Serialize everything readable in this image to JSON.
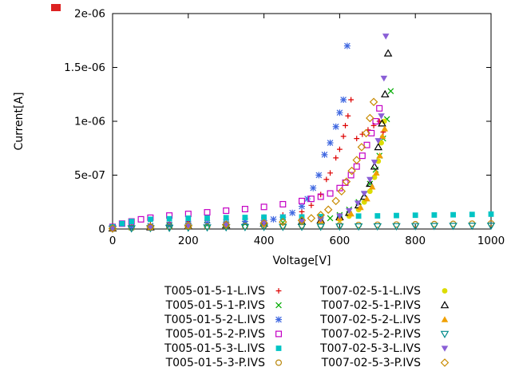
{
  "corner_marker": {
    "color": "#dd2222"
  },
  "chart_data": {
    "type": "scatter",
    "title": "",
    "xlabel": "Voltage[V]",
    "ylabel": "Current[A]",
    "xlim": [
      0,
      1000
    ],
    "ylim": [
      0,
      2e-06
    ],
    "xticks": [
      0,
      200,
      400,
      600,
      800,
      1000
    ],
    "xtick_labels": [
      "0",
      "200",
      "400",
      "600",
      "800",
      "1000"
    ],
    "yticks": [
      0,
      5e-07,
      1e-06,
      1.5e-06,
      2e-06
    ],
    "ytick_labels": [
      "0",
      "5e-07",
      "1e-06",
      "1.5e-06",
      "2e-06"
    ],
    "grid": false,
    "legend_position": "below-two-columns",
    "series": [
      {
        "name": "T005-01-5-1-L.IVS",
        "marker": "plus",
        "color": "#dd0000",
        "points": [
          [
            0,
            1e-08
          ],
          [
            50,
            3e-08
          ],
          [
            100,
            4.5e-08
          ],
          [
            150,
            6e-08
          ],
          [
            200,
            7e-08
          ],
          [
            250,
            8e-08
          ],
          [
            300,
            9e-08
          ],
          [
            350,
            1e-07
          ],
          [
            400,
            1.1e-07
          ],
          [
            450,
            1.3e-07
          ],
          [
            500,
            1.6e-07
          ],
          [
            525,
            2.2e-07
          ],
          [
            550,
            3.2e-07
          ],
          [
            565,
            4.6e-07
          ],
          [
            575,
            5.2e-07
          ],
          [
            590,
            6.6e-07
          ],
          [
            600,
            7.4e-07
          ],
          [
            610,
            8.6e-07
          ],
          [
            615,
            9.6e-07
          ],
          [
            622,
            1.05e-06
          ],
          [
            630,
            1.2e-06
          ],
          [
            645,
            8.4e-07
          ],
          [
            660,
            8.8e-07
          ],
          [
            675,
            9.2e-07
          ],
          [
            690,
            9.6e-07
          ],
          [
            705,
            1e-06
          ],
          [
            715,
            9e-07
          ]
        ]
      },
      {
        "name": "T005-01-5-1-P.IVS",
        "marker": "cross",
        "color": "#00aa00",
        "points": [
          [
            0,
            5e-09
          ],
          [
            50,
            1.5e-08
          ],
          [
            100,
            2.5e-08
          ],
          [
            150,
            3e-08
          ],
          [
            200,
            3.5e-08
          ],
          [
            250,
            4e-08
          ],
          [
            300,
            4.5e-08
          ],
          [
            350,
            5e-08
          ],
          [
            400,
            5.5e-08
          ],
          [
            450,
            6e-08
          ],
          [
            500,
            7e-08
          ],
          [
            550,
            8e-08
          ],
          [
            575,
            1e-07
          ],
          [
            600,
            1.3e-07
          ],
          [
            625,
            1.8e-07
          ],
          [
            650,
            2.5e-07
          ],
          [
            665,
            3.2e-07
          ],
          [
            680,
            4.2e-07
          ],
          [
            695,
            5.5e-07
          ],
          [
            705,
            6.8e-07
          ],
          [
            715,
            8.4e-07
          ],
          [
            725,
            1.02e-06
          ],
          [
            735,
            1.28e-06
          ]
        ]
      },
      {
        "name": "T005-01-5-2-L.IVS",
        "marker": "star",
        "color": "#4169e1",
        "points": [
          [
            0,
            8e-09
          ],
          [
            50,
            2e-08
          ],
          [
            100,
            3e-08
          ],
          [
            150,
            4e-08
          ],
          [
            200,
            5e-08
          ],
          [
            250,
            5.5e-08
          ],
          [
            300,
            6e-08
          ],
          [
            350,
            7e-08
          ],
          [
            400,
            8e-08
          ],
          [
            425,
            9e-08
          ],
          [
            450,
            1.1e-07
          ],
          [
            475,
            1.5e-07
          ],
          [
            500,
            2.1e-07
          ],
          [
            515,
            2.8e-07
          ],
          [
            530,
            3.8e-07
          ],
          [
            545,
            5e-07
          ],
          [
            560,
            6.9e-07
          ],
          [
            575,
            8e-07
          ],
          [
            590,
            9.5e-07
          ],
          [
            600,
            1.08e-06
          ],
          [
            610,
            1.2e-06
          ],
          [
            620,
            1.7e-06
          ]
        ]
      },
      {
        "name": "T005-01-5-2-P.IVS",
        "marker": "square-open",
        "color": "#c400c4",
        "points": [
          [
            0,
            2e-08
          ],
          [
            25,
            5e-08
          ],
          [
            50,
            7e-08
          ],
          [
            75,
            9e-08
          ],
          [
            100,
            1.05e-07
          ],
          [
            150,
            1.25e-07
          ],
          [
            200,
            1.4e-07
          ],
          [
            250,
            1.55e-07
          ],
          [
            300,
            1.7e-07
          ],
          [
            350,
            1.85e-07
          ],
          [
            400,
            2.05e-07
          ],
          [
            450,
            2.3e-07
          ],
          [
            500,
            2.6e-07
          ],
          [
            525,
            2.8e-07
          ],
          [
            550,
            3e-07
          ],
          [
            575,
            3.3e-07
          ],
          [
            600,
            3.8e-07
          ],
          [
            615,
            4.3e-07
          ],
          [
            630,
            5e-07
          ],
          [
            645,
            5.8e-07
          ],
          [
            660,
            6.8e-07
          ],
          [
            672,
            7.8e-07
          ],
          [
            684,
            8.9e-07
          ],
          [
            695,
            1e-06
          ],
          [
            705,
            1.12e-06
          ]
        ]
      },
      {
        "name": "T005-01-5-3-L.IVS",
        "marker": "square-filled",
        "color": "#00c4c4",
        "points": [
          [
            0,
            2e-08
          ],
          [
            25,
            5e-08
          ],
          [
            50,
            7e-08
          ],
          [
            100,
            9e-08
          ],
          [
            150,
            9.5e-08
          ],
          [
            200,
            1e-07
          ],
          [
            250,
            1.02e-07
          ],
          [
            300,
            1.05e-07
          ],
          [
            350,
            1.07e-07
          ],
          [
            400,
            1.1e-07
          ],
          [
            450,
            1.1e-07
          ],
          [
            500,
            1.12e-07
          ],
          [
            550,
            1.15e-07
          ],
          [
            600,
            1.18e-07
          ],
          [
            650,
            1.2e-07
          ],
          [
            700,
            1.22e-07
          ],
          [
            750,
            1.25e-07
          ],
          [
            800,
            1.28e-07
          ],
          [
            850,
            1.3e-07
          ],
          [
            900,
            1.32e-07
          ],
          [
            950,
            1.35e-07
          ],
          [
            1000,
            1.38e-07
          ]
        ]
      },
      {
        "name": "T005-01-5-3-P.IVS",
        "marker": "circle-open",
        "color": "#b8860b",
        "points": [
          [
            0,
            5e-09
          ],
          [
            50,
            1e-08
          ],
          [
            100,
            1.5e-08
          ],
          [
            150,
            1.8e-08
          ],
          [
            200,
            2e-08
          ],
          [
            250,
            2.2e-08
          ],
          [
            300,
            2.4e-08
          ],
          [
            350,
            2.6e-08
          ],
          [
            400,
            2.8e-08
          ],
          [
            450,
            3e-08
          ],
          [
            500,
            3.2e-08
          ],
          [
            550,
            3.4e-08
          ],
          [
            600,
            3.6e-08
          ],
          [
            650,
            3.8e-08
          ],
          [
            700,
            4e-08
          ],
          [
            750,
            4.2e-08
          ],
          [
            800,
            4.4e-08
          ],
          [
            850,
            4.6e-08
          ],
          [
            900,
            4.8e-08
          ],
          [
            950,
            5e-08
          ],
          [
            1000,
            5.2e-08
          ]
        ]
      },
      {
        "name": "T007-02-5-1-L.IVS",
        "marker": "circle-filled",
        "color": "#dcdc00",
        "points": [
          [
            0,
            5e-09
          ],
          [
            100,
            1.5e-08
          ],
          [
            200,
            2.5e-08
          ],
          [
            300,
            3.5e-08
          ],
          [
            400,
            4.5e-08
          ],
          [
            500,
            6e-08
          ],
          [
            550,
            7e-08
          ],
          [
            600,
            9e-08
          ],
          [
            625,
            1.2e-07
          ],
          [
            650,
            1.8e-07
          ],
          [
            665,
            2.5e-07
          ],
          [
            680,
            3.5e-07
          ],
          [
            692,
            4.8e-07
          ],
          [
            702,
            6.3e-07
          ],
          [
            710,
            8e-07
          ],
          [
            718,
            1e-06
          ]
        ]
      },
      {
        "name": "T007-02-5-1-P.IVS",
        "marker": "triangle-open",
        "color": "#000000",
        "points": [
          [
            0,
            5e-09
          ],
          [
            100,
            1.5e-08
          ],
          [
            200,
            2.5e-08
          ],
          [
            300,
            3.5e-08
          ],
          [
            400,
            5e-08
          ],
          [
            500,
            6.5e-08
          ],
          [
            550,
            8e-08
          ],
          [
            600,
            1.1e-07
          ],
          [
            625,
            1.5e-07
          ],
          [
            650,
            2.2e-07
          ],
          [
            665,
            3e-07
          ],
          [
            680,
            4.2e-07
          ],
          [
            692,
            5.8e-07
          ],
          [
            702,
            7.6e-07
          ],
          [
            712,
            9.8e-07
          ],
          [
            720,
            1.25e-06
          ],
          [
            728,
            1.63e-06
          ]
        ]
      },
      {
        "name": "T007-02-5-2-L.IVS",
        "marker": "triangle-filled",
        "color": "#f0a000",
        "points": [
          [
            0,
            5e-09
          ],
          [
            100,
            1.5e-08
          ],
          [
            200,
            2.5e-08
          ],
          [
            300,
            3.5e-08
          ],
          [
            400,
            4.5e-08
          ],
          [
            500,
            6e-08
          ],
          [
            550,
            7.5e-08
          ],
          [
            600,
            1e-07
          ],
          [
            630,
            1.4e-07
          ],
          [
            655,
            2e-07
          ],
          [
            672,
            2.8e-07
          ],
          [
            686,
            3.9e-07
          ],
          [
            697,
            5.2e-07
          ],
          [
            706,
            6.8e-07
          ],
          [
            713,
            8.6e-07
          ],
          [
            719,
            9.3e-07
          ]
        ]
      },
      {
        "name": "T007-02-5-2-P.IVS",
        "marker": "triangle-down-open",
        "color": "#008b8b",
        "points": [
          [
            0,
            3e-09
          ],
          [
            50,
            6e-09
          ],
          [
            100,
            9e-09
          ],
          [
            150,
            1.1e-08
          ],
          [
            200,
            1.3e-08
          ],
          [
            250,
            1.5e-08
          ],
          [
            300,
            1.6e-08
          ],
          [
            350,
            1.8e-08
          ],
          [
            400,
            1.9e-08
          ],
          [
            450,
            2e-08
          ],
          [
            500,
            2.1e-08
          ],
          [
            550,
            2.2e-08
          ],
          [
            600,
            2.3e-08
          ],
          [
            650,
            2.4e-08
          ],
          [
            700,
            2.5e-08
          ],
          [
            750,
            2.6e-08
          ],
          [
            800,
            2.7e-08
          ],
          [
            850,
            2.8e-08
          ],
          [
            900,
            2.9e-08
          ],
          [
            950,
            3e-08
          ],
          [
            1000,
            3.1e-08
          ]
        ]
      },
      {
        "name": "T007-02-5-3-L.IVS",
        "marker": "triangle-down-filled",
        "color": "#8a5fd6",
        "points": [
          [
            0,
            5e-09
          ],
          [
            100,
            1.5e-08
          ],
          [
            200,
            3e-08
          ],
          [
            300,
            4e-08
          ],
          [
            400,
            5.5e-08
          ],
          [
            500,
            7e-08
          ],
          [
            550,
            9e-08
          ],
          [
            600,
            1.2e-07
          ],
          [
            625,
            1.7e-07
          ],
          [
            648,
            2.4e-07
          ],
          [
            665,
            3.3e-07
          ],
          [
            680,
            4.6e-07
          ],
          [
            692,
            6.2e-07
          ],
          [
            702,
            8.2e-07
          ],
          [
            710,
            1.05e-06
          ],
          [
            717,
            1.4e-06
          ],
          [
            722,
            1.79e-06
          ]
        ]
      },
      {
        "name": "T007-02-5-3-P.IVS",
        "marker": "diamond-open",
        "color": "#c88a00",
        "points": [
          [
            0,
            5e-09
          ],
          [
            100,
            2e-08
          ],
          [
            200,
            3e-08
          ],
          [
            300,
            4e-08
          ],
          [
            400,
            5.5e-08
          ],
          [
            450,
            6.5e-08
          ],
          [
            500,
            8e-08
          ],
          [
            525,
            1e-07
          ],
          [
            550,
            1.3e-07
          ],
          [
            570,
            1.8e-07
          ],
          [
            590,
            2.6e-07
          ],
          [
            605,
            3.5e-07
          ],
          [
            618,
            4.4e-07
          ],
          [
            632,
            5.4e-07
          ],
          [
            645,
            6.4e-07
          ],
          [
            658,
            7.6e-07
          ],
          [
            670,
            8.9e-07
          ],
          [
            680,
            1.03e-06
          ],
          [
            690,
            1.18e-06
          ]
        ]
      }
    ]
  }
}
